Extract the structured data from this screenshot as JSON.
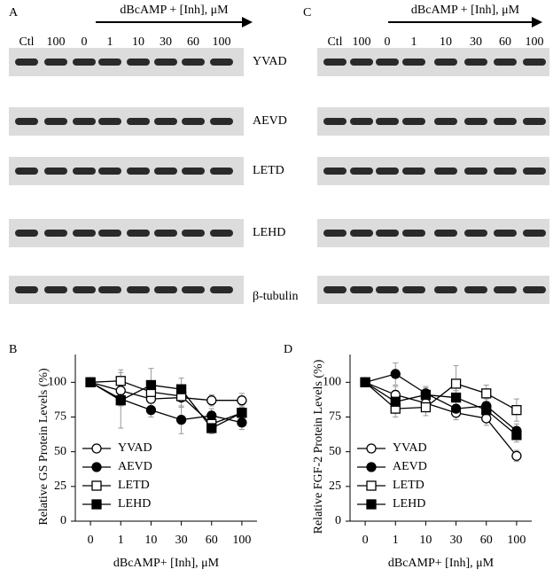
{
  "blots": [
    {
      "label": "A",
      "header": "dBcAMP + [Inh], μM",
      "lanes": [
        "Ctl",
        "100",
        "0",
        "1",
        "10",
        "30",
        "60",
        "100"
      ]
    },
    {
      "label": "C",
      "header": "dBcAMP + [Inh], μM",
      "lanes": [
        "Ctl",
        "100",
        "0",
        "1",
        "10",
        "30",
        "60",
        "100"
      ]
    }
  ],
  "band_labels": [
    "YVAD",
    "AEVD",
    "LETD",
    "LEHD",
    "β-tubulin"
  ],
  "chart_data": [
    {
      "type": "line",
      "panel": "B",
      "ylabel": "Relative GS  Protein Levels  (%)",
      "xlabel": "dBcAMP+ [Inh], μM",
      "categories": [
        "0",
        "1",
        "10",
        "30",
        "60",
        "100"
      ],
      "ylim": [
        0,
        120
      ],
      "yticks": [
        0,
        25,
        50,
        75,
        100
      ],
      "legend": "lower left",
      "series": [
        {
          "name": "YVAD",
          "color": "#000000",
          "marker": "circle",
          "filled": false,
          "values": [
            100,
            94,
            88,
            89,
            87,
            87
          ],
          "errors": [
            0,
            8,
            6,
            6,
            4,
            5
          ]
        },
        {
          "name": "AEVD",
          "color": "#000000",
          "marker": "circle",
          "filled": true,
          "values": [
            100,
            88,
            80,
            73,
            76,
            71
          ],
          "errors": [
            0,
            5,
            5,
            10,
            5,
            5
          ]
        },
        {
          "name": "LETD",
          "color": "#000000",
          "marker": "square",
          "filled": false,
          "values": [
            100,
            101,
            93,
            90,
            70,
            78
          ],
          "errors": [
            0,
            8,
            8,
            8,
            5,
            6
          ]
        },
        {
          "name": "LEHD",
          "color": "#000000",
          "marker": "square",
          "filled": true,
          "values": [
            100,
            87,
            98,
            95,
            67,
            78
          ],
          "errors": [
            0,
            20,
            12,
            8,
            4,
            5
          ]
        }
      ]
    },
    {
      "type": "line",
      "panel": "D",
      "ylabel": "Relative FGF-2  Protein Levels (%)",
      "xlabel": "dBcAMP+ [Inh], μM",
      "categories": [
        "0",
        "1",
        "10",
        "30",
        "60",
        "100"
      ],
      "ylim": [
        0,
        120
      ],
      "yticks": [
        0,
        25,
        50,
        75,
        100
      ],
      "legend": "lower left",
      "series": [
        {
          "name": "YVAD",
          "color": "#000000",
          "marker": "circle",
          "filled": false,
          "values": [
            100,
            91,
            85,
            78,
            74,
            47
          ],
          "errors": [
            0,
            6,
            5,
            5,
            5,
            4
          ]
        },
        {
          "name": "AEVD",
          "color": "#000000",
          "marker": "circle",
          "filled": true,
          "values": [
            100,
            106,
            92,
            81,
            83,
            65
          ],
          "errors": [
            0,
            8,
            5,
            5,
            5,
            5
          ]
        },
        {
          "name": "LETD",
          "color": "#000000",
          "marker": "square",
          "filled": false,
          "values": [
            100,
            81,
            82,
            99,
            92,
            80
          ],
          "errors": [
            0,
            6,
            6,
            13,
            6,
            8
          ]
        },
        {
          "name": "LEHD",
          "color": "#000000",
          "marker": "square",
          "filled": true,
          "values": [
            100,
            86,
            91,
            89,
            80,
            62
          ],
          "errors": [
            0,
            6,
            5,
            5,
            5,
            5
          ]
        }
      ]
    }
  ]
}
